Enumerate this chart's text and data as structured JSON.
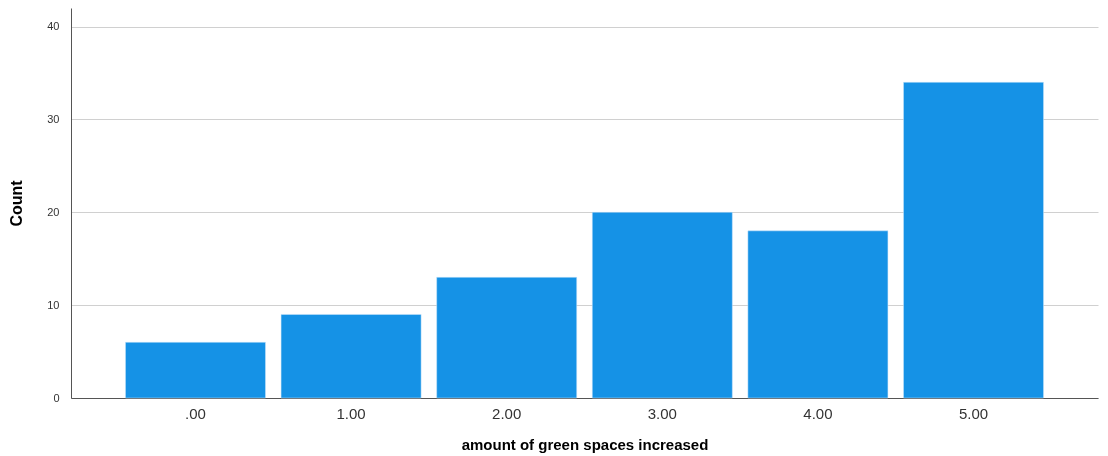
{
  "chart_data": {
    "type": "bar",
    "xlabel": "amount of green spaces increased",
    "ylabel": "Count",
    "categories": [
      ".00",
      "1.00",
      "2.00",
      "3.00",
      "4.00",
      "5.00"
    ],
    "values": [
      6,
      9,
      13,
      20,
      18,
      34
    ],
    "color": "#1592e6",
    "ylim": [
      0,
      42
    ],
    "yticks": [
      0,
      10,
      20,
      30,
      40
    ],
    "grid": "y"
  }
}
